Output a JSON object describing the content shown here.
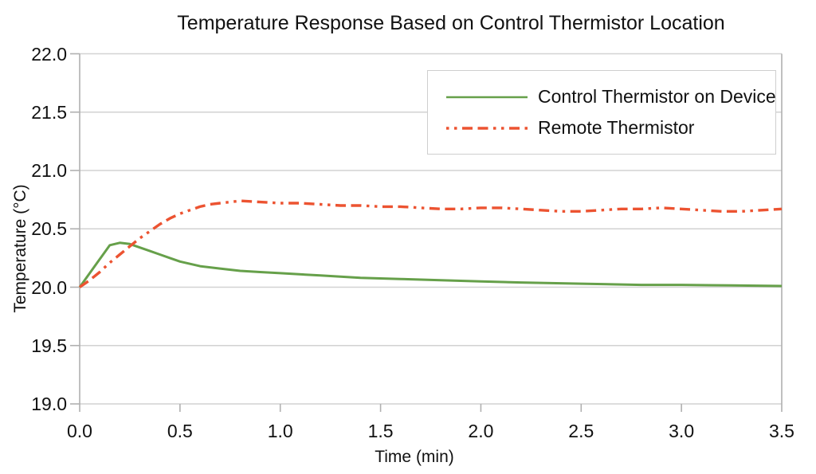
{
  "colors": {
    "series_green": "#66a04a",
    "series_red": "#ec5331",
    "gridline": "#d2d2d2",
    "axis": "#b0b0b0",
    "text": "#111111"
  },
  "chart_data": {
    "type": "line",
    "title": "Temperature Response Based on Control Thermistor Location",
    "xlabel": "Time (min)",
    "ylabel": "Temperature (°C)",
    "xlim": [
      0.0,
      3.5
    ],
    "ylim": [
      19.0,
      22.0
    ],
    "x_ticks": [
      "0.0",
      "0.5",
      "1.0",
      "1.5",
      "2.0",
      "2.5",
      "3.0",
      "3.5"
    ],
    "y_ticks": [
      "19.0",
      "19.5",
      "20.0",
      "20.5",
      "21.0",
      "21.5",
      "22.0"
    ],
    "grid": "horizontal-only",
    "legend_position": "top-right-inside",
    "series": [
      {
        "name": "Control Thermistor on Device",
        "color": "#66a04a",
        "line_style": "solid",
        "x": [
          0.0,
          0.05,
          0.1,
          0.15,
          0.2,
          0.25,
          0.3,
          0.35,
          0.4,
          0.45,
          0.5,
          0.6,
          0.7,
          0.8,
          0.9,
          1.0,
          1.2,
          1.4,
          1.6,
          1.8,
          2.0,
          2.2,
          2.5,
          2.8,
          3.0,
          3.25,
          3.5
        ],
        "y": [
          20.0,
          20.12,
          20.24,
          20.36,
          20.38,
          20.37,
          20.34,
          20.31,
          20.28,
          20.25,
          20.22,
          20.18,
          20.16,
          20.14,
          20.13,
          20.12,
          20.1,
          20.08,
          20.07,
          20.06,
          20.05,
          20.04,
          20.03,
          20.02,
          20.02,
          20.015,
          20.01
        ]
      },
      {
        "name": "Remote Thermistor",
        "color": "#ec5331",
        "line_style": "dash-dash-dot-dot",
        "x": [
          0.0,
          0.05,
          0.1,
          0.15,
          0.2,
          0.25,
          0.3,
          0.35,
          0.4,
          0.45,
          0.5,
          0.55,
          0.6,
          0.65,
          0.7,
          0.75,
          0.8,
          0.9,
          1.0,
          1.1,
          1.2,
          1.3,
          1.4,
          1.5,
          1.6,
          1.7,
          1.8,
          1.9,
          2.0,
          2.1,
          2.2,
          2.3,
          2.4,
          2.5,
          2.6,
          2.7,
          2.8,
          2.9,
          3.0,
          3.1,
          3.2,
          3.3,
          3.4,
          3.5
        ],
        "y": [
          20.0,
          20.06,
          20.13,
          20.21,
          20.28,
          20.35,
          20.42,
          20.48,
          20.54,
          20.59,
          20.63,
          20.66,
          20.69,
          20.71,
          20.72,
          20.73,
          20.74,
          20.73,
          20.72,
          20.72,
          20.71,
          20.7,
          20.7,
          20.69,
          20.69,
          20.68,
          20.67,
          20.67,
          20.68,
          20.68,
          20.67,
          20.66,
          20.65,
          20.65,
          20.66,
          20.67,
          20.67,
          20.68,
          20.67,
          20.66,
          20.65,
          20.65,
          20.66,
          20.67
        ]
      }
    ]
  }
}
